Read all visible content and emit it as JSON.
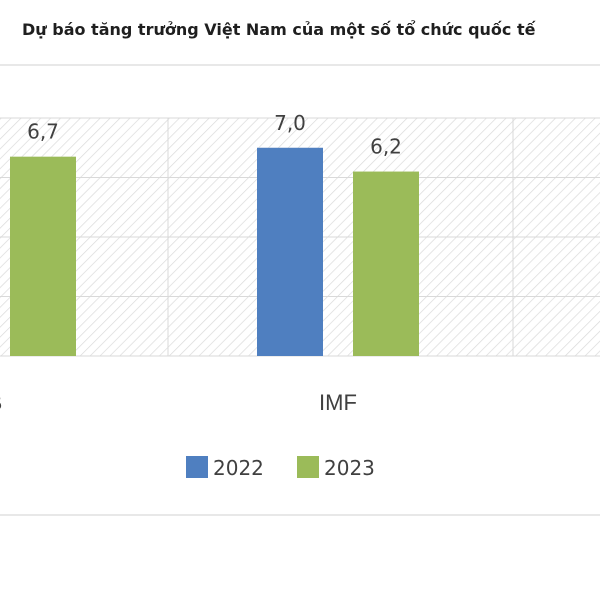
{
  "chart_data": {
    "type": "bar",
    "title": "Dự báo tăng trưởng Việt Nam của một số tổ chức quốc tế",
    "categories": [
      "B",
      "IMF",
      ""
    ],
    "series": [
      {
        "name": "2022",
        "values": [
          null,
          7.0,
          null
        ],
        "labels": [
          "",
          "7,0",
          ""
        ],
        "color": "#4f7fc0"
      },
      {
        "name": "2023",
        "values": [
          6.7,
          6.2,
          null
        ],
        "labels": [
          "6,7",
          "6,2",
          ""
        ],
        "color": "#9bbb59"
      }
    ],
    "ylim": [
      0,
      8
    ],
    "grid": true,
    "legend": "bottom"
  }
}
